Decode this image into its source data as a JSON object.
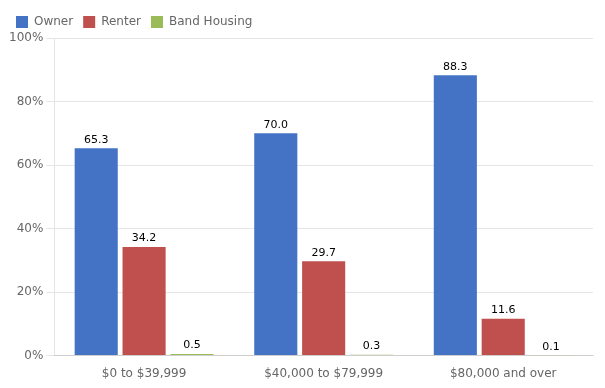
{
  "chart_data": {
    "type": "bar",
    "categories": [
      "$0 to $39,999",
      "$40,000 to $79,999",
      "$80,000 and over"
    ],
    "series": [
      {
        "name": "Owner",
        "color": "#4472C4",
        "values": [
          65.3,
          70.0,
          88.3
        ],
        "value_labels": [
          "65.3",
          "70.0",
          "88.3"
        ]
      },
      {
        "name": "Renter",
        "color": "#C0504D",
        "values": [
          34.2,
          29.7,
          11.6
        ]
      },
      {
        "name": "Band Housing",
        "color": "#9BBB59",
        "values": [
          0.5,
          0.3,
          0.1
        ]
      }
    ],
    "ylim": [
      0,
      100
    ],
    "yticks": [
      {
        "value": 0,
        "label": "0%"
      },
      {
        "value": 20,
        "label": "20%"
      },
      {
        "value": 40,
        "label": "40%"
      },
      {
        "value": 60,
        "label": "60%"
      },
      {
        "value": 80,
        "label": "80%"
      },
      {
        "value": 100,
        "label": "100%"
      }
    ],
    "grid": true,
    "legend": "upper left",
    "data_labels": true
  }
}
